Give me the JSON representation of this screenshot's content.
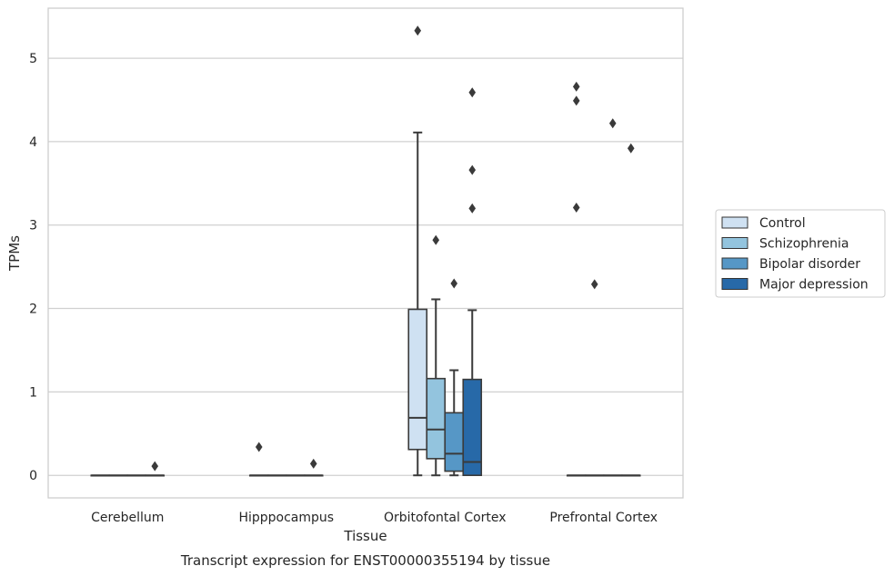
{
  "chart_data": {
    "type": "box",
    "xlabel": "Tissue",
    "ylabel": "TPMs",
    "caption": "Transcript expression for ENST00000355194 by tissue",
    "categories": [
      "Cerebellum",
      "Hipppocampus",
      "Orbitofontal Cortex",
      "Prefrontal Cortex"
    ],
    "ylim": [
      -0.27,
      5.6
    ],
    "yticks": [
      0,
      1,
      2,
      3,
      4,
      5
    ],
    "grid": "horizontal",
    "legend_position": "right",
    "series": [
      {
        "name": "Control",
        "color": "#cfe1f2",
        "boxes": [
          {
            "q1": 0,
            "median": 0,
            "q3": 0,
            "whisker_low": 0,
            "whisker_high": 0,
            "outliers": []
          },
          {
            "q1": 0,
            "median": 0,
            "q3": 0,
            "whisker_low": 0,
            "whisker_high": 0,
            "outliers": [
              0.34
            ]
          },
          {
            "q1": 0.31,
            "median": 0.69,
            "q3": 1.99,
            "whisker_low": 0,
            "whisker_high": 4.11,
            "outliers": [
              5.33
            ]
          },
          {
            "q1": 0,
            "median": 0,
            "q3": 0,
            "whisker_low": 0,
            "whisker_high": 0,
            "outliers": [
              4.66,
              4.49,
              3.21
            ]
          }
        ]
      },
      {
        "name": "Schizophrenia",
        "color": "#93c4de",
        "boxes": [
          {
            "q1": 0,
            "median": 0,
            "q3": 0,
            "whisker_low": 0,
            "whisker_high": 0,
            "outliers": []
          },
          {
            "q1": 0,
            "median": 0,
            "q3": 0,
            "whisker_low": 0,
            "whisker_high": 0,
            "outliers": []
          },
          {
            "q1": 0.2,
            "median": 0.55,
            "q3": 1.16,
            "whisker_low": 0,
            "whisker_high": 2.11,
            "outliers": [
              2.82
            ]
          },
          {
            "q1": 0,
            "median": 0,
            "q3": 0,
            "whisker_low": 0,
            "whisker_high": 0,
            "outliers": [
              2.29
            ]
          }
        ]
      },
      {
        "name": "Bipolar disorder",
        "color": "#5697c6",
        "boxes": [
          {
            "q1": 0,
            "median": 0,
            "q3": 0,
            "whisker_low": 0,
            "whisker_high": 0,
            "outliers": []
          },
          {
            "q1": 0,
            "median": 0,
            "q3": 0,
            "whisker_low": 0,
            "whisker_high": 0,
            "outliers": []
          },
          {
            "q1": 0.05,
            "median": 0.26,
            "q3": 0.75,
            "whisker_low": 0,
            "whisker_high": 1.26,
            "outliers": [
              2.3
            ]
          },
          {
            "q1": 0,
            "median": 0,
            "q3": 0,
            "whisker_low": 0,
            "whisker_high": 0,
            "outliers": [
              4.22
            ]
          }
        ]
      },
      {
        "name": "Major depression",
        "color": "#2769a8",
        "boxes": [
          {
            "q1": 0,
            "median": 0,
            "q3": 0,
            "whisker_low": 0,
            "whisker_high": 0,
            "outliers": [
              0.11
            ]
          },
          {
            "q1": 0,
            "median": 0,
            "q3": 0,
            "whisker_low": 0,
            "whisker_high": 0,
            "outliers": [
              0.14
            ]
          },
          {
            "q1": 0,
            "median": 0.16,
            "q3": 1.15,
            "whisker_low": 0,
            "whisker_high": 1.98,
            "outliers": [
              4.59,
              3.66,
              3.2
            ]
          },
          {
            "q1": 0,
            "median": 0,
            "q3": 0,
            "whisker_low": 0,
            "whisker_high": 0,
            "outliers": [
              3.92
            ]
          }
        ]
      }
    ]
  }
}
